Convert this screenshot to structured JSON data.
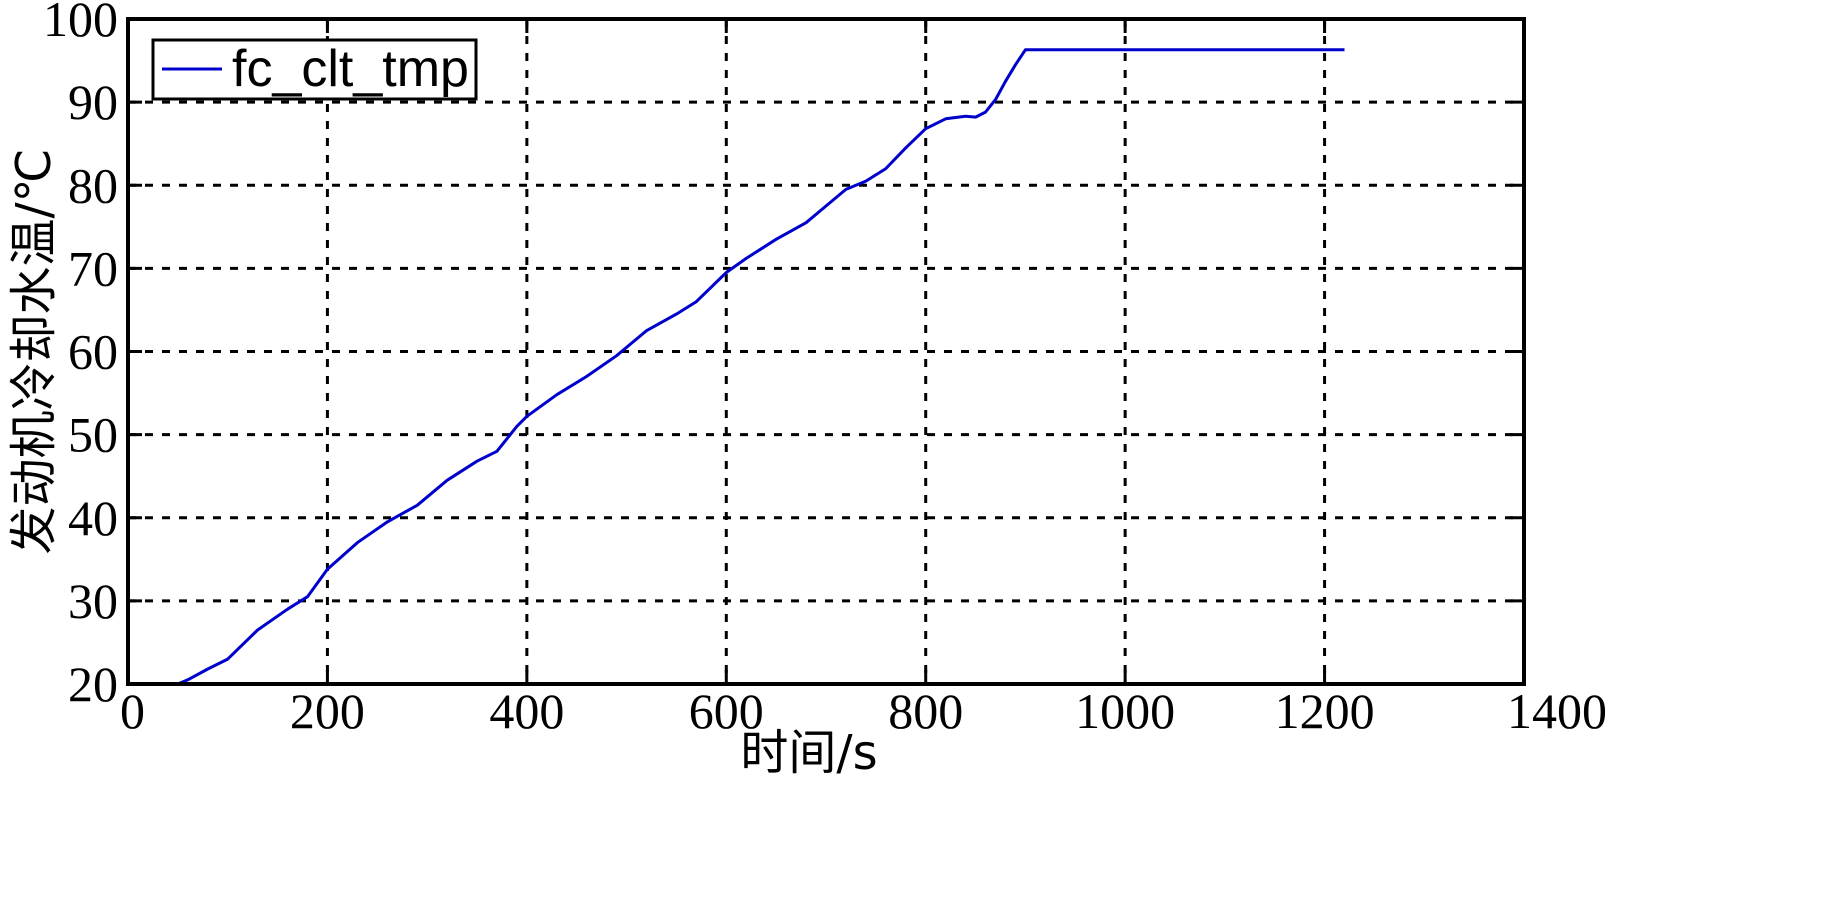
{
  "chart_data": {
    "type": "line",
    "xlabel": "时间/s",
    "ylabel": "发动机冷却水温/℃",
    "xlim": [
      0,
      1400
    ],
    "ylim": [
      20,
      100
    ],
    "xticks": [
      0,
      200,
      400,
      600,
      800,
      1000,
      1200,
      1400
    ],
    "yticks": [
      20,
      30,
      40,
      50,
      60,
      70,
      80,
      90,
      100
    ],
    "grid": true,
    "legend_position": "top-left",
    "series": [
      {
        "name": "fc_clt_tmp",
        "color": "#0000CC",
        "x": [
          0,
          50,
          60,
          80,
          100,
          130,
          160,
          180,
          200,
          230,
          260,
          290,
          320,
          350,
          370,
          390,
          400,
          430,
          460,
          490,
          520,
          550,
          570,
          600,
          620,
          650,
          680,
          700,
          720,
          740,
          760,
          780,
          800,
          820,
          840,
          850,
          860,
          870,
          880,
          890,
          900,
          1000,
          1100,
          1220
        ],
        "y": [
          20,
          20,
          20.5,
          21.8,
          23,
          26.5,
          29,
          30.5,
          33.8,
          37,
          39.5,
          41.5,
          44.5,
          46.8,
          48,
          51,
          52.2,
          54.8,
          57,
          59.5,
          62.5,
          64.5,
          66,
          69.5,
          71.2,
          73.5,
          75.5,
          77.5,
          79.5,
          80.5,
          82,
          84.5,
          86.8,
          88,
          88.3,
          88.2,
          88.8,
          90.3,
          92.5,
          94.5,
          96.3,
          96.3,
          96.3,
          96.3
        ]
      }
    ]
  }
}
